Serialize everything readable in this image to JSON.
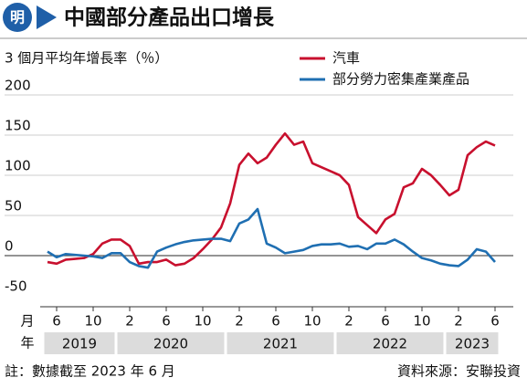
{
  "logo": "明",
  "chart_data": {
    "type": "line",
    "title": "中國部分產品出口增長",
    "subtitle": "3 個月平均年增長率（％）",
    "categories": [
      null,
      "6",
      null,
      null,
      null,
      "10",
      null,
      null,
      null,
      "2",
      null,
      null,
      null,
      "6",
      null,
      null,
      null,
      "10",
      null,
      null,
      null,
      "2",
      null,
      null,
      null,
      "6",
      null,
      null,
      null,
      "10",
      null,
      null,
      null,
      "2",
      null,
      null,
      null,
      "6",
      null,
      null,
      null,
      "10",
      null,
      null,
      null,
      "2",
      null,
      null,
      null,
      "6"
    ],
    "month_label": "月",
    "year_label": "年",
    "years": [
      {
        "label": "2019",
        "months": 8
      },
      {
        "label": "2020",
        "months": 12
      },
      {
        "label": "2021",
        "months": 12
      },
      {
        "label": "2022",
        "months": 12
      },
      {
        "label": "2023",
        "months": 6
      }
    ],
    "series": [
      {
        "name": "汽車",
        "color": "#c8102e",
        "values": [
          -8,
          -10,
          -5,
          -4,
          -3,
          2,
          15,
          20,
          20,
          12,
          -10,
          -8,
          -8,
          -5,
          -12,
          -10,
          -3,
          8,
          20,
          35,
          65,
          113,
          127,
          115,
          122,
          138,
          152,
          138,
          142,
          115,
          110,
          105,
          100,
          88,
          48,
          38,
          28,
          45,
          52,
          85,
          90,
          108,
          100,
          88,
          75,
          82,
          125,
          135,
          142,
          137
        ]
      },
      {
        "name": "部分勞力密集產業產品",
        "color": "#1f6fb2",
        "values": [
          5,
          -2,
          2,
          1,
          0,
          -1,
          -3,
          3,
          3,
          -8,
          -13,
          -15,
          5,
          10,
          14,
          17,
          19,
          20,
          21,
          21,
          18,
          40,
          45,
          58,
          15,
          10,
          3,
          5,
          7,
          12,
          14,
          14,
          15,
          11,
          12,
          8,
          15,
          15,
          20,
          14,
          5,
          -3,
          -6,
          -10,
          -12,
          -13,
          -5,
          8,
          5,
          -8
        ]
      }
    ],
    "ylim": [
      -50,
      200
    ],
    "yticks": [
      -50,
      0,
      50,
      100,
      150,
      200
    ],
    "grid": true,
    "note": "註：數據截至 2023 年 6 月",
    "source": "資料來源：安聯投資"
  }
}
